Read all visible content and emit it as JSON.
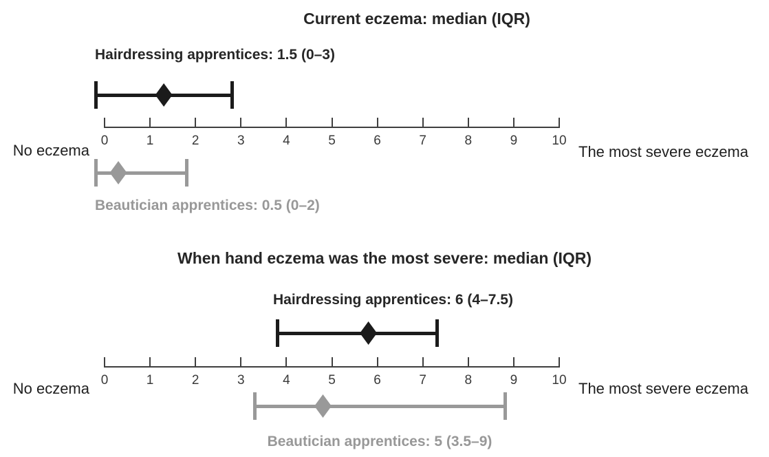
{
  "colors": {
    "series_black": "#1b1b1b",
    "series_gray": "#999999",
    "axis": "#3f3f3f",
    "title_text": "#262626",
    "gray_text": "#989898"
  },
  "chart_data": [
    {
      "type": "errorbar",
      "title": "Current eczema: median (IQR)",
      "axis": {
        "min": 0,
        "max": 10,
        "ticks": [
          0,
          1,
          2,
          3,
          4,
          5,
          6,
          7,
          8,
          9,
          10
        ]
      },
      "left_label": "No eczema",
      "right_label": "The most severe eczema",
      "series": [
        {
          "name": "Hairdressing apprentices",
          "median": 1.5,
          "iqr": [
            0,
            3
          ],
          "label": "Hairdressing apprentices: 1.5 (0–3)",
          "color": "#1b1b1b",
          "row": "above-axis"
        },
        {
          "name": "Beautician apprentices",
          "median": 0.5,
          "iqr": [
            0,
            2
          ],
          "label": "Beautician apprentices: 0.5 (0–2)",
          "color": "#999999",
          "row": "below-axis"
        }
      ]
    },
    {
      "type": "errorbar",
      "title": "When hand eczema was the most severe: median (IQR)",
      "axis": {
        "min": 0,
        "max": 10,
        "ticks": [
          0,
          1,
          2,
          3,
          4,
          5,
          6,
          7,
          8,
          9,
          10
        ]
      },
      "left_label": "No eczema",
      "right_label": "The most severe eczema",
      "series": [
        {
          "name": "Hairdressing apprentices",
          "median": 6,
          "iqr": [
            4,
            7.5
          ],
          "label": "Hairdressing apprentices: 6 (4–7.5)",
          "color": "#1b1b1b",
          "row": "above-axis"
        },
        {
          "name": "Beautician apprentices",
          "median": 5,
          "iqr": [
            3.5,
            9
          ],
          "label": "Beautician apprentices: 5 (3.5–9)",
          "color": "#999999",
          "row": "below-axis"
        }
      ]
    }
  ]
}
